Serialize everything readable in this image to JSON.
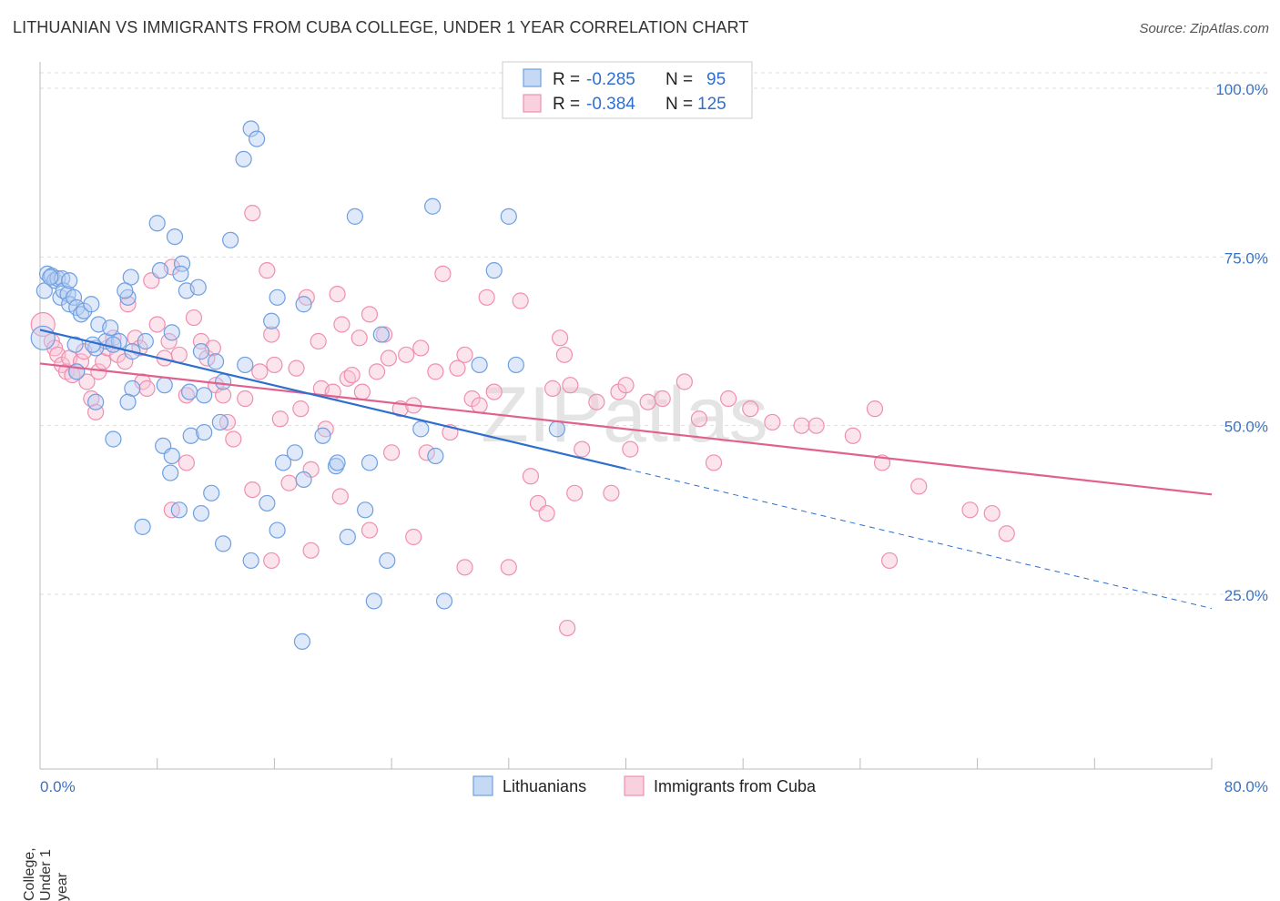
{
  "title": "LITHUANIAN VS IMMIGRANTS FROM CUBA COLLEGE, UNDER 1 YEAR CORRELATION CHART",
  "source": "Source: ZipAtlas.com",
  "watermark": "ZIPatlas",
  "colors": {
    "blue": "#6f9fe0",
    "blue_line": "#2d6fce",
    "pink": "#f08fb0",
    "pink_line": "#e0608f",
    "axis_text": "#3a73c4"
  },
  "stats": [
    {
      "r_label": "R =",
      "r_value": "-0.285",
      "n_label": "N =",
      "n_value": "95",
      "color": "#6f9fe0"
    },
    {
      "r_label": "R =",
      "r_value": "-0.384",
      "n_label": "N =",
      "n_value": "125",
      "color": "#f08fb0"
    }
  ],
  "chart_data": {
    "type": "scatter",
    "title": "LITHUANIAN VS IMMIGRANTS FROM CUBA COLLEGE, UNDER 1 YEAR CORRELATION CHART",
    "xlabel": "",
    "ylabel": "College, Under 1 year",
    "xlim": [
      0,
      80
    ],
    "ylim": [
      0,
      105
    ],
    "x_tick_labels": [
      "0.0%",
      "80.0%"
    ],
    "y_tick_labels": [
      "100.0%",
      "75.0%",
      "50.0%",
      "25.0%"
    ],
    "y_tick_values": [
      100,
      75,
      50,
      25
    ],
    "grid": true,
    "legend_position": "bottom-center",
    "series": [
      {
        "name": "Lithuanians",
        "color": "#6f9fe0",
        "trend": {
          "x": [
            0,
            40
          ],
          "y": [
            64.2,
            43.6
          ],
          "dashed_to": [
            80,
            22.9
          ]
        },
        "points": [
          [
            0.2,
            63
          ],
          [
            0.3,
            70
          ],
          [
            0.5,
            72.5
          ],
          [
            0.8,
            72.2
          ],
          [
            1.0,
            71.5
          ],
          [
            1.2,
            71.8
          ],
          [
            1.5,
            71.8
          ],
          [
            1.4,
            69
          ],
          [
            1.6,
            70
          ],
          [
            1.9,
            69.5
          ],
          [
            2.0,
            68
          ],
          [
            2.3,
            69
          ],
          [
            2.5,
            67.5
          ],
          [
            2.8,
            66.5
          ],
          [
            3.0,
            67
          ],
          [
            3.5,
            68
          ],
          [
            4.0,
            65
          ],
          [
            4.5,
            62.5
          ],
          [
            3.8,
            61.5
          ],
          [
            3.6,
            62
          ],
          [
            2.4,
            62
          ],
          [
            4.8,
            64.5
          ],
          [
            5.4,
            62.5
          ],
          [
            6.0,
            69
          ],
          [
            6.2,
            72
          ],
          [
            6.3,
            61
          ],
          [
            7.2,
            62.5
          ],
          [
            5.0,
            62
          ],
          [
            8.2,
            73
          ],
          [
            8.0,
            80
          ],
          [
            9.2,
            78
          ],
          [
            9.7,
            74
          ],
          [
            9.6,
            72.5
          ],
          [
            10.0,
            70
          ],
          [
            10.8,
            70.5
          ],
          [
            11.0,
            61
          ],
          [
            12.0,
            59.5
          ],
          [
            13.0,
            77.5
          ],
          [
            13.9,
            89.5
          ],
          [
            14.4,
            94
          ],
          [
            14.8,
            92.5
          ],
          [
            15.8,
            65.5
          ],
          [
            16.2,
            69
          ],
          [
            18.0,
            68
          ],
          [
            21.5,
            81
          ],
          [
            26.8,
            82.5
          ],
          [
            31.0,
            73
          ],
          [
            32.0,
            81
          ],
          [
            32.5,
            59
          ],
          [
            23.3,
            63.5
          ],
          [
            12.5,
            56.5
          ],
          [
            11.2,
            54.5
          ],
          [
            10.2,
            55
          ],
          [
            8.5,
            56
          ],
          [
            6.3,
            55.5
          ],
          [
            6.0,
            53.5
          ],
          [
            3.8,
            53.5
          ],
          [
            2.5,
            58
          ],
          [
            5.0,
            48
          ],
          [
            8.4,
            47
          ],
          [
            9.0,
            45.5
          ],
          [
            8.9,
            43
          ],
          [
            10.3,
            48.5
          ],
          [
            11.2,
            49
          ],
          [
            12.3,
            50.5
          ],
          [
            14.0,
            59
          ],
          [
            11.7,
            40
          ],
          [
            11.0,
            37
          ],
          [
            9.5,
            37.5
          ],
          [
            12.5,
            32.5
          ],
          [
            14.4,
            30
          ],
          [
            15.5,
            38.5
          ],
          [
            16.2,
            34.5
          ],
          [
            16.6,
            44.5
          ],
          [
            17.4,
            46
          ],
          [
            18.0,
            42
          ],
          [
            19.3,
            48.5
          ],
          [
            20.2,
            44
          ],
          [
            20.3,
            44.5
          ],
          [
            21.0,
            33.5
          ],
          [
            22.2,
            37.5
          ],
          [
            22.5,
            44.5
          ],
          [
            23.7,
            30
          ],
          [
            22.8,
            24
          ],
          [
            26.0,
            49.5
          ],
          [
            27.0,
            45.5
          ],
          [
            27.6,
            24
          ],
          [
            30.0,
            59
          ],
          [
            35.3,
            49.5
          ],
          [
            7.0,
            35
          ],
          [
            17.9,
            18
          ],
          [
            2.0,
            71.5
          ],
          [
            0.7,
            72
          ],
          [
            5.8,
            70
          ],
          [
            9.0,
            63.8
          ]
        ]
      },
      {
        "name": "Immigrants from Cuba",
        "color": "#f08fb0",
        "trend": {
          "x": [
            0,
            80
          ],
          "y": [
            59.2,
            39.8
          ]
        },
        "points": [
          [
            0.2,
            65
          ],
          [
            0.8,
            62.5
          ],
          [
            1.0,
            61.5
          ],
          [
            1.2,
            60.5
          ],
          [
            1.5,
            59
          ],
          [
            1.8,
            58
          ],
          [
            2.0,
            60
          ],
          [
            2.2,
            57.5
          ],
          [
            2.5,
            58
          ],
          [
            2.8,
            59.5
          ],
          [
            3.0,
            61
          ],
          [
            3.2,
            56.5
          ],
          [
            3.5,
            54
          ],
          [
            3.8,
            52
          ],
          [
            4.0,
            58
          ],
          [
            4.3,
            59.5
          ],
          [
            4.6,
            61.5
          ],
          [
            5.0,
            63
          ],
          [
            5.3,
            60.5
          ],
          [
            5.8,
            59.5
          ],
          [
            6.0,
            68
          ],
          [
            6.5,
            63
          ],
          [
            6.8,
            61.5
          ],
          [
            7.0,
            56.5
          ],
          [
            7.3,
            55.5
          ],
          [
            7.6,
            71.5
          ],
          [
            8.0,
            65
          ],
          [
            8.5,
            60
          ],
          [
            8.8,
            62.5
          ],
          [
            9.0,
            73.5
          ],
          [
            9.5,
            60.5
          ],
          [
            10.0,
            54.5
          ],
          [
            10.5,
            66
          ],
          [
            11.0,
            62.5
          ],
          [
            11.4,
            60
          ],
          [
            11.8,
            61.5
          ],
          [
            12.0,
            56
          ],
          [
            12.5,
            54.5
          ],
          [
            12.8,
            50.5
          ],
          [
            13.2,
            48
          ],
          [
            14.0,
            54
          ],
          [
            14.5,
            81.5
          ],
          [
            15.0,
            58
          ],
          [
            15.5,
            73
          ],
          [
            15.8,
            63.5
          ],
          [
            16.0,
            59
          ],
          [
            16.4,
            51
          ],
          [
            17.0,
            41.5
          ],
          [
            17.5,
            58.5
          ],
          [
            17.8,
            52.5
          ],
          [
            18.2,
            69
          ],
          [
            18.5,
            43.5
          ],
          [
            19.0,
            62.5
          ],
          [
            19.2,
            55.5
          ],
          [
            19.5,
            49.5
          ],
          [
            20.0,
            55
          ],
          [
            20.3,
            69.5
          ],
          [
            20.6,
            65
          ],
          [
            21.0,
            57
          ],
          [
            21.3,
            57.5
          ],
          [
            21.8,
            63
          ],
          [
            22.0,
            55
          ],
          [
            22.5,
            66.5
          ],
          [
            23.0,
            58
          ],
          [
            23.5,
            63.5
          ],
          [
            23.8,
            60
          ],
          [
            24.0,
            46
          ],
          [
            24.6,
            52.5
          ],
          [
            25.0,
            60.5
          ],
          [
            25.5,
            53
          ],
          [
            26.0,
            61.5
          ],
          [
            26.4,
            46
          ],
          [
            27.0,
            58
          ],
          [
            27.5,
            72.5
          ],
          [
            28.0,
            49
          ],
          [
            28.5,
            58.5
          ],
          [
            29.0,
            60.5
          ],
          [
            29.5,
            54
          ],
          [
            30.0,
            53
          ],
          [
            30.5,
            69
          ],
          [
            31.0,
            55
          ],
          [
            32.0,
            29
          ],
          [
            32.8,
            68.5
          ],
          [
            33.5,
            42.5
          ],
          [
            34.0,
            38.5
          ],
          [
            34.6,
            37
          ],
          [
            35.0,
            55.5
          ],
          [
            35.5,
            63
          ],
          [
            35.8,
            60.5
          ],
          [
            36.2,
            56
          ],
          [
            36.5,
            40
          ],
          [
            37.0,
            46.5
          ],
          [
            38.0,
            53.5
          ],
          [
            39.0,
            40
          ],
          [
            39.5,
            55
          ],
          [
            40.0,
            56
          ],
          [
            40.3,
            46.5
          ],
          [
            41.5,
            53.5
          ],
          [
            42.5,
            54
          ],
          [
            44.0,
            56.5
          ],
          [
            45.0,
            51
          ],
          [
            46.0,
            44.5
          ],
          [
            47.0,
            54
          ],
          [
            48.5,
            52.5
          ],
          [
            50.0,
            50.5
          ],
          [
            52.0,
            50
          ],
          [
            53.0,
            50
          ],
          [
            55.5,
            48.5
          ],
          [
            57.0,
            52.5
          ],
          [
            57.5,
            44.5
          ],
          [
            58.0,
            30
          ],
          [
            60.0,
            41
          ],
          [
            63.5,
            37.5
          ],
          [
            65.0,
            37
          ],
          [
            66.0,
            34
          ],
          [
            14.5,
            40.5
          ],
          [
            15.8,
            30
          ],
          [
            18.5,
            31.5
          ],
          [
            20.5,
            39.5
          ],
          [
            22.5,
            34.5
          ],
          [
            25.5,
            33.5
          ],
          [
            29.0,
            29
          ],
          [
            36.0,
            20
          ],
          [
            9.0,
            37.5
          ],
          [
            10.0,
            44.5
          ]
        ]
      }
    ]
  },
  "legend": {
    "items": [
      "Lithuanians",
      "Immigrants from Cuba"
    ]
  }
}
